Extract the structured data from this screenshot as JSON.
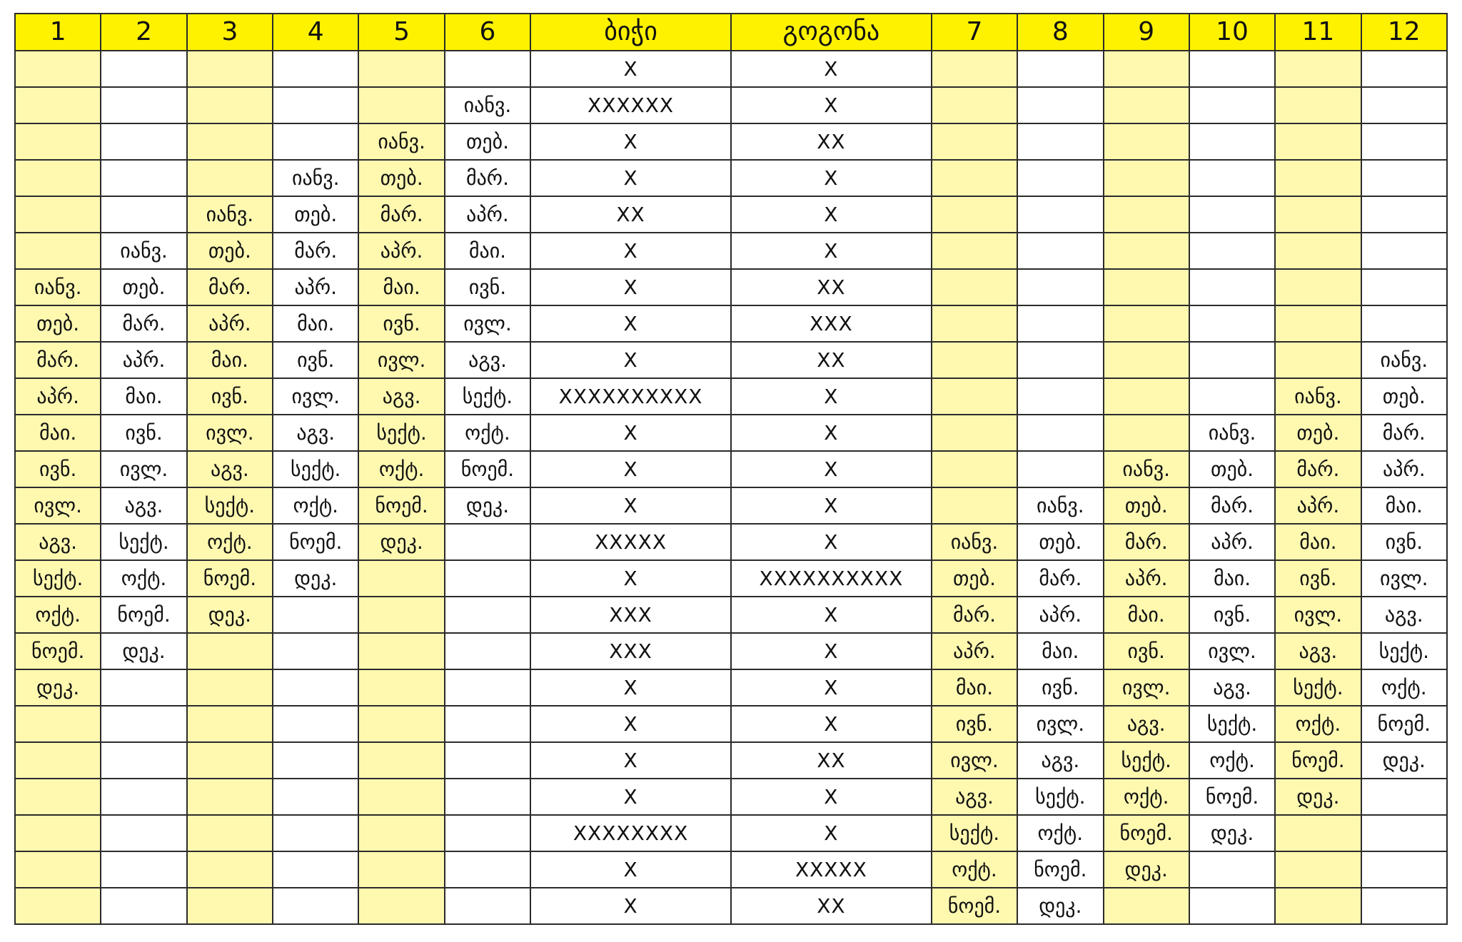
{
  "headers": [
    "1",
    "2",
    "3",
    "4",
    "5",
    "6",
    "ბიჭი",
    "გოგონა",
    "7",
    "8",
    "9",
    "10",
    "11",
    "12"
  ],
  "months": [
    "იანვ.",
    "თებ.",
    "მარ.",
    "აპრ.",
    "მაი.",
    "ივნ.",
    "ივლ.",
    "აგვ.",
    "სექტ.",
    "ოქტ.",
    "ნოემ.",
    "დეკ."
  ],
  "start_rows": {
    "1": 6,
    "2": 5,
    "3": 4,
    "4": 3,
    "5": 2,
    "6": 1,
    "7": 13,
    "8": 12,
    "9": 11,
    "10": 10,
    "11": 9,
    "12": 8
  },
  "boy_marks": [
    "X",
    "XXXXXX",
    "X",
    "X",
    "XX",
    "X",
    "X",
    "X",
    "X",
    "XXXXXXXXXX",
    "X",
    "X",
    "X",
    "XXXXX",
    "X",
    "XXX",
    "XXX",
    "X",
    "X",
    "X",
    "X",
    "XXXXXXXX",
    "X",
    "X"
  ],
  "girl_marks": [
    "X",
    "X",
    "XX",
    "X",
    "X",
    "X",
    "XX",
    "XXX",
    "XX",
    "X",
    "X",
    "X",
    "X",
    "X",
    "XXXXXXXXXX",
    "X",
    "X",
    "X",
    "X",
    "XX",
    "X",
    "X",
    "XXXXX",
    "XX"
  ],
  "colors": {
    "header_bg": "#fff200",
    "shaded_column_bg": "#fff9b0",
    "boy_mark": "#1aa7e0",
    "girl_mark": "#e02424",
    "grid_line": "#2b2b2b"
  }
}
